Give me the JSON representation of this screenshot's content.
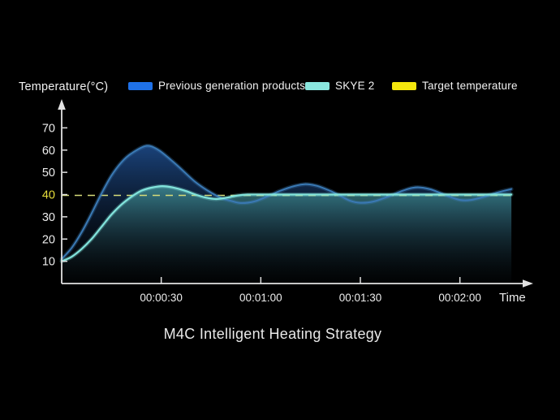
{
  "page": {
    "background": "#000000"
  },
  "legend": {
    "axis_label": "Temperature(°C)",
    "items": [
      {
        "label": "Previous generation products",
        "color": "#1F71E8"
      },
      {
        "label": "SKYE 2",
        "color": "#8AE6DE"
      },
      {
        "label": "Target temperature",
        "color": "#F4E70D"
      }
    ]
  },
  "chart_data": {
    "type": "line",
    "title": "M4C Intelligent Heating Strategy",
    "xlabel": "Time",
    "ylabel": "Temperature(°C)",
    "x_ticks": [
      "00:00:30",
      "00:01:00",
      "00:01:30",
      "00:02:00"
    ],
    "x_tick_seconds": [
      30,
      60,
      90,
      120
    ],
    "y_ticks": [
      10,
      20,
      30,
      40,
      50,
      60,
      70
    ],
    "ylim": [
      0,
      74
    ],
    "xlim_seconds": [
      0,
      140
    ],
    "grid": false,
    "legend_position": "top",
    "target_temperature": 40,
    "highlighted_y_tick": 40,
    "series": [
      {
        "name": "Previous generation products",
        "line_color": "#3A79B4",
        "fill_top_color": "#1E4C8C",
        "points": [
          [
            0,
            11
          ],
          [
            3,
            16
          ],
          [
            6,
            23
          ],
          [
            9,
            31.5
          ],
          [
            12,
            40.5
          ],
          [
            15,
            48.5
          ],
          [
            18,
            54.5
          ],
          [
            21,
            58.5
          ],
          [
            25.5,
            61.9
          ],
          [
            29,
            60.2
          ],
          [
            33,
            55.5
          ],
          [
            36,
            51.5
          ],
          [
            40,
            46
          ],
          [
            44,
            41.8
          ],
          [
            48,
            38.5
          ],
          [
            51,
            37.2
          ],
          [
            54,
            36.2
          ],
          [
            58,
            36.9
          ],
          [
            62,
            39.2
          ],
          [
            66,
            41.8
          ],
          [
            70,
            43.8
          ],
          [
            73.5,
            44.7
          ],
          [
            77,
            43.9
          ],
          [
            81,
            41.6
          ],
          [
            84,
            39.4
          ],
          [
            87,
            37.2
          ],
          [
            90,
            36.3
          ],
          [
            94,
            36.9
          ],
          [
            98,
            38.9
          ],
          [
            102,
            41.3
          ],
          [
            105,
            42.8
          ],
          [
            107.5,
            43.3
          ],
          [
            111,
            42.4
          ],
          [
            114,
            40.8
          ],
          [
            117,
            39
          ],
          [
            120,
            37.6
          ],
          [
            123,
            37.5
          ],
          [
            127,
            38.9
          ],
          [
            131,
            40.8
          ],
          [
            135.5,
            42.5
          ]
        ]
      },
      {
        "name": "SKYE 2",
        "line_color": "#82E4DC",
        "fill_top_color": "#3F8C94",
        "points": [
          [
            0,
            10
          ],
          [
            3,
            12
          ],
          [
            6,
            15.5
          ],
          [
            9,
            20
          ],
          [
            12,
            25.5
          ],
          [
            15,
            31
          ],
          [
            18,
            35.5
          ],
          [
            21,
            39
          ],
          [
            24,
            41.7
          ],
          [
            27,
            43.1
          ],
          [
            30.3,
            43.8
          ],
          [
            33.5,
            43.2
          ],
          [
            37,
            41.8
          ],
          [
            40,
            40.2
          ],
          [
            43,
            38.8
          ],
          [
            46.5,
            38
          ],
          [
            50,
            38.7
          ],
          [
            53,
            39.6
          ],
          [
            56,
            40
          ],
          [
            62,
            40
          ],
          [
            75,
            40
          ],
          [
            100,
            40
          ],
          [
            135.5,
            40
          ]
        ]
      },
      {
        "name": "Target temperature",
        "style": "dashed-horizontal",
        "value": 40,
        "line_color": "#D6DC7A"
      }
    ],
    "colors": {
      "axis": "#E2E2E2",
      "tick_label": "#EDEDED",
      "target_tick_label": "#E8DF3C",
      "title": "#E8E8E8"
    }
  }
}
